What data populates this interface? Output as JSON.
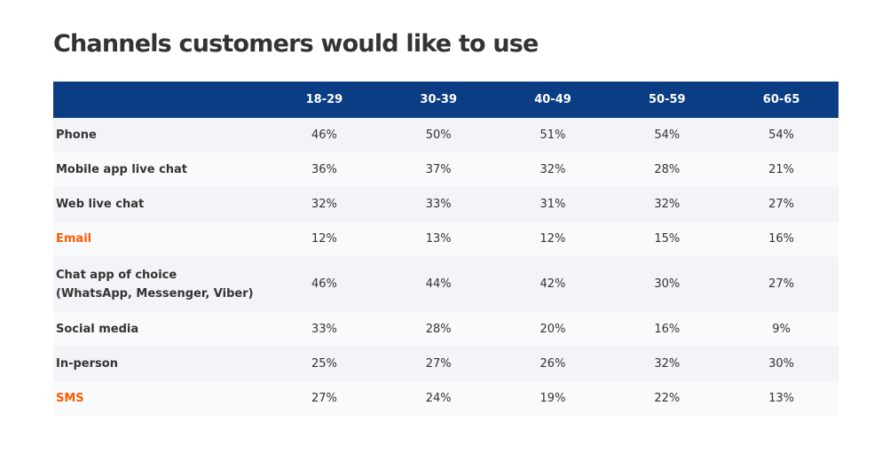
{
  "title": "Channels customers would like to use",
  "colors": {
    "header": "#0b3d85",
    "highlight": "#ff5a00",
    "row_a": "#f3f4f8",
    "row_b": "#f9fafc",
    "text": "#333333"
  },
  "chart_data": {
    "type": "table",
    "title": "Channels customers would like to use",
    "columns": [
      "",
      "18-29",
      "30-39",
      "40-49",
      "50-59",
      "60-65"
    ],
    "rows": [
      {
        "label": "Phone",
        "highlight": false,
        "values": [
          "46%",
          "50%",
          "51%",
          "54%",
          "54%"
        ]
      },
      {
        "label": "Mobile app live chat",
        "highlight": false,
        "values": [
          "36%",
          "37%",
          "32%",
          "28%",
          "21%"
        ]
      },
      {
        "label": "Web live chat",
        "highlight": false,
        "values": [
          "32%",
          "33%",
          "31%",
          "32%",
          "27%"
        ]
      },
      {
        "label": "Email",
        "highlight": true,
        "values": [
          "12%",
          "13%",
          "12%",
          "15%",
          "16%"
        ]
      },
      {
        "label": "Chat app of choice",
        "sublabel": "(WhatsApp, Messenger, Viber)",
        "highlight": false,
        "values": [
          "46%",
          "44%",
          "42%",
          "30%",
          "27%"
        ]
      },
      {
        "label": "Social media",
        "highlight": false,
        "values": [
          "33%",
          "28%",
          "20%",
          "16%",
          "9%"
        ]
      },
      {
        "label": "In-person",
        "highlight": false,
        "values": [
          "25%",
          "27%",
          "26%",
          "32%",
          "30%"
        ]
      },
      {
        "label": "SMS",
        "highlight": true,
        "values": [
          "27%",
          "24%",
          "19%",
          "22%",
          "13%"
        ]
      }
    ]
  }
}
